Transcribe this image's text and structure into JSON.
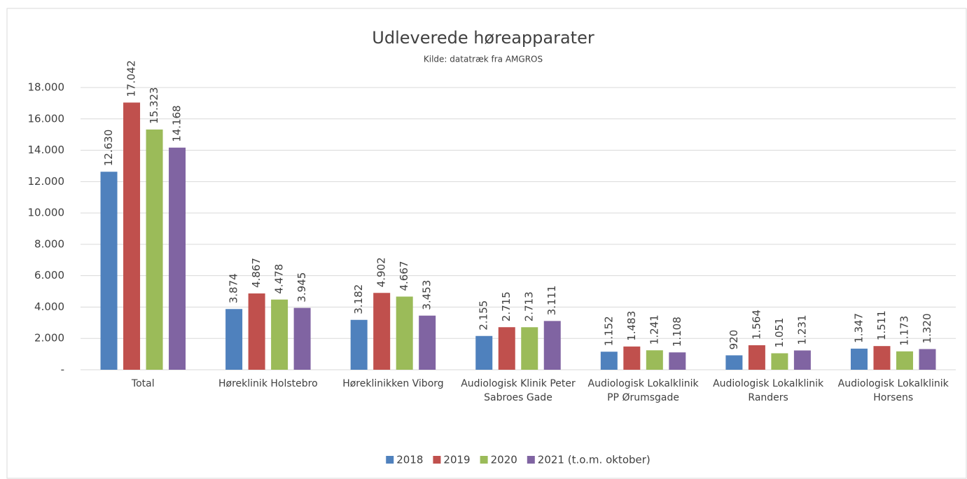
{
  "chart_data": {
    "type": "bar",
    "title": "Udleverede høreapparater",
    "subtitle": "Kilde: datatræk fra AMGROS",
    "categories": [
      "Total",
      "Høreklinik Holstebro",
      "Høreklinikken Viborg",
      "Audiologisk Klinik Peter Sabroes Gade",
      "Audiologisk Lokalklinik PP Ørumsgade",
      "Audiologisk Lokalklinik Randers",
      "Audiologisk Lokalklinik Horsens"
    ],
    "series": [
      {
        "name": "2018",
        "color": "#4f81bd",
        "values": [
          12630,
          3874,
          3182,
          2155,
          1152,
          920,
          1347
        ],
        "value_labels": [
          "12.630",
          "3.874",
          "3.182",
          "2.155",
          "1.152",
          "920",
          "1.347"
        ]
      },
      {
        "name": "2019",
        "color": "#c0504d",
        "values": [
          17042,
          4867,
          4902,
          2715,
          1483,
          1564,
          1511
        ],
        "value_labels": [
          "17.042",
          "4.867",
          "4.902",
          "2.715",
          "1.483",
          "1.564",
          "1.511"
        ]
      },
      {
        "name": "2020",
        "color": "#9bbb59",
        "values": [
          15323,
          4478,
          4667,
          2713,
          1241,
          1051,
          1173
        ],
        "value_labels": [
          "15.323",
          "4.478",
          "4.667",
          "2.713",
          "1.241",
          "1.051",
          "1.173"
        ]
      },
      {
        "name": "2021 (t.o.m. oktober)",
        "color": "#8064a2",
        "values": [
          14168,
          3945,
          3453,
          3111,
          1108,
          1231,
          1320
        ],
        "value_labels": [
          "14.168",
          "3.945",
          "3.453",
          "3.111",
          "1.108",
          "1.231",
          "1.320"
        ]
      }
    ],
    "ylim": [
      0,
      18000
    ],
    "yticks": [
      {
        "value": 0,
        "label": "-"
      },
      {
        "value": 2000,
        "label": "2.000"
      },
      {
        "value": 4000,
        "label": "4.000"
      },
      {
        "value": 6000,
        "label": "6.000"
      },
      {
        "value": 8000,
        "label": "8.000"
      },
      {
        "value": 10000,
        "label": "10.000"
      },
      {
        "value": 12000,
        "label": "12.000"
      },
      {
        "value": 14000,
        "label": "14.000"
      },
      {
        "value": 16000,
        "label": "16.000"
      },
      {
        "value": 18000,
        "label": "18.000"
      }
    ],
    "grid": true,
    "legend": "bottom"
  }
}
